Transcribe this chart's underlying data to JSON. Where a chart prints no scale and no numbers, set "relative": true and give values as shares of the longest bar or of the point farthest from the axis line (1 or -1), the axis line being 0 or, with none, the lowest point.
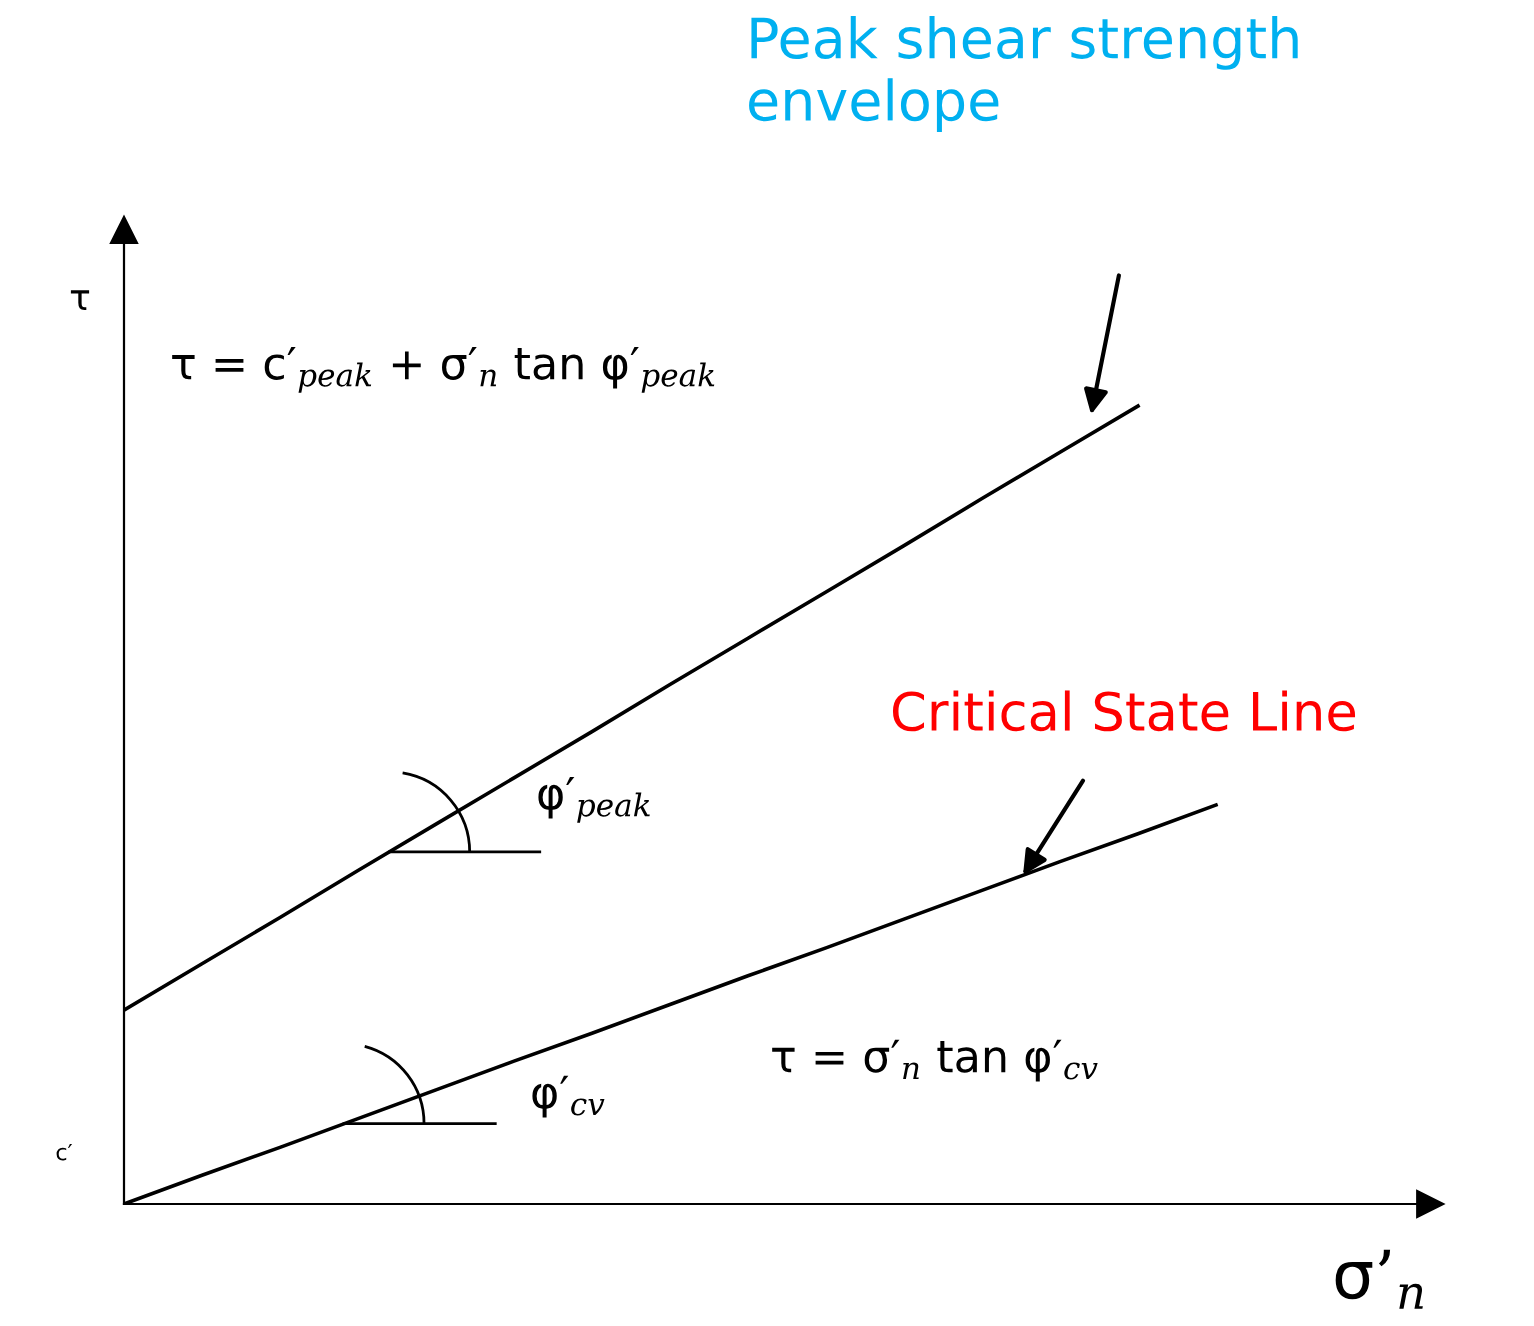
{
  "chart_data": {
    "type": "line",
    "relative": true,
    "ylabel": "τ",
    "xlabel": "σ’$_{n}$",
    "categories": [
      null,
      null,
      null,
      null,
      null,
      null,
      null,
      null,
      null,
      null,
      null,
      null,
      null,
      null,
      null
    ],
    "series": [
      {
        "color": "#000000",
        "values": [
          0.243,
          0.301,
          0.359,
          0.418,
          0.476,
          0.534,
          0.592,
          0.651,
          0.709,
          0.767,
          0.825,
          0.884,
          0.942,
          1.0,
          null
        ]
      },
      {
        "color": "#000000",
        "values": [
          0,
          0.036,
          0.071,
          0.107,
          0.143,
          0.179,
          0.214,
          0.25,
          0.286,
          0.321,
          0.357,
          0.393,
          0.429,
          0.464,
          0.5
        ]
      }
    ],
    "annotations": [
      "Peak shear strength envelope",
      "Critical State Line",
      "τ = c′$_{peak}$ + σ′$_{n}$ tan φ′$_{peak}$",
      "τ = σ′$_{n}$ tan φ′$_{cv}$",
      "φ′$_{peak}$",
      "φ′$_{cv}$",
      "c′"
    ],
    "grid": false,
    "legend": false,
    "marker": "none",
    "line_style": "solid"
  }
}
